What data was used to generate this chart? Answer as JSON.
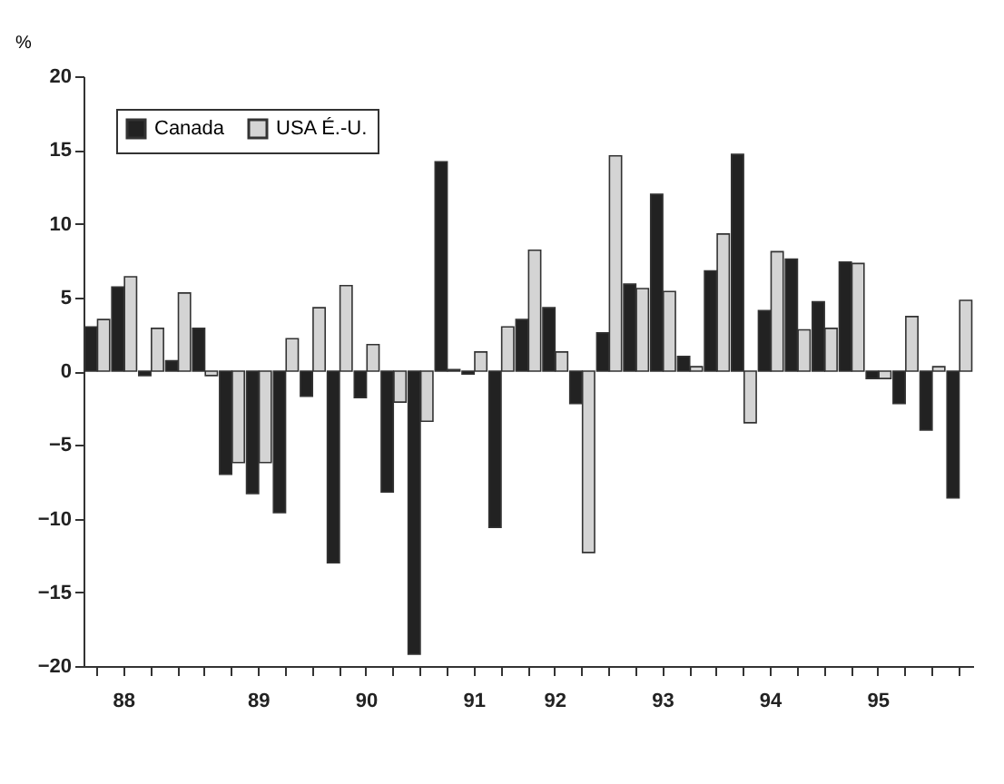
{
  "chart_data": {
    "type": "bar",
    "ylabel": "%",
    "categories": [
      null,
      "88",
      null,
      null,
      null,
      null,
      "89",
      null,
      null,
      null,
      "90",
      null,
      null,
      null,
      "91",
      null,
      null,
      "92",
      null,
      null,
      null,
      "93",
      null,
      null,
      null,
      "94",
      null,
      null,
      null,
      "95",
      null,
      null,
      null
    ],
    "series": [
      {
        "name": "Canada",
        "color": "#222222",
        "values": [
          3,
          5.7,
          -0.3,
          0.7,
          2.9,
          -7,
          -8.3,
          -9.6,
          -1.7,
          -13,
          -1.8,
          -8.2,
          -19.2,
          14.2,
          -0.2,
          -10.6,
          3.5,
          4.3,
          -2.2,
          2.6,
          5.9,
          12,
          1,
          6.8,
          14.7,
          4.1,
          7.6,
          4.7,
          7.4,
          -0.5,
          -2.2,
          -4,
          -8.6
        ]
      },
      {
        "name": "USA É.-U.",
        "color": "#d4d4d4",
        "values": [
          3.5,
          6.4,
          2.9,
          5.3,
          -0.3,
          -6.2,
          -6.2,
          2.2,
          4.3,
          5.8,
          1.8,
          -2.1,
          -3.4,
          0.1,
          1.3,
          3,
          8.2,
          1.3,
          -12.3,
          14.6,
          5.6,
          5.4,
          0.3,
          9.3,
          -3.5,
          8.1,
          2.8,
          2.9,
          7.3,
          -0.5,
          3.7,
          0.3,
          4.8
        ]
      }
    ],
    "ylim": [
      -20,
      20
    ],
    "yticks": [
      -20,
      -15,
      -10,
      -5,
      0,
      5,
      10,
      15,
      20
    ],
    "grid": false,
    "legend": "top left"
  }
}
